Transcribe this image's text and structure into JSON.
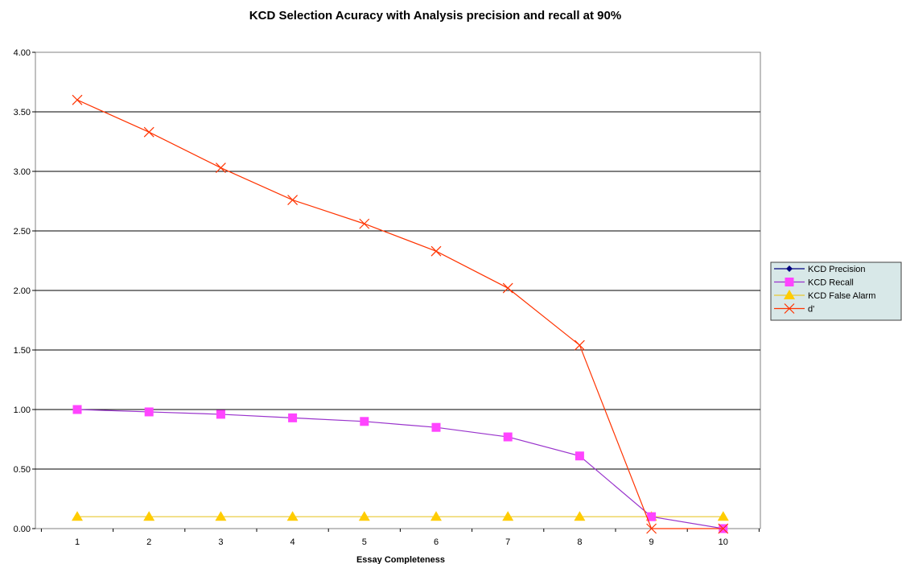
{
  "chart_data": {
    "type": "line",
    "title": "KCD Selection Acuracy with Analysis precision and recall at 90%",
    "xlabel": "Essay Completeness",
    "ylabel": "",
    "categories": [
      "1",
      "2",
      "3",
      "4",
      "5",
      "6",
      "7",
      "8",
      "9",
      "10"
    ],
    "ylim": [
      0,
      4
    ],
    "y_ticks": [
      "0.00",
      "0.50",
      "1.00",
      "1.50",
      "2.00",
      "2.50",
      "3.00",
      "3.50",
      "4.00"
    ],
    "grid": "horizontal",
    "legend_position": "right",
    "series": [
      {
        "name": "KCD Precision",
        "marker": "diamond",
        "color": "#000080",
        "values": [
          null,
          null,
          null,
          null,
          null,
          null,
          null,
          null,
          null,
          null
        ]
      },
      {
        "name": "KCD Recall",
        "marker": "square",
        "color": "#ff44ff",
        "line_color": "#9933cc",
        "values": [
          1.0,
          0.98,
          0.96,
          0.93,
          0.9,
          0.85,
          0.77,
          0.61,
          0.1,
          0.0
        ]
      },
      {
        "name": "KCD False Alarm",
        "marker": "triangle",
        "color": "#ffcc00",
        "line_color": "#e8c830",
        "values": [
          0.1,
          0.1,
          0.1,
          0.1,
          0.1,
          0.1,
          0.1,
          0.1,
          0.1,
          0.1
        ]
      },
      {
        "name": "d'",
        "marker": "x",
        "color": "#ff3300",
        "values": [
          3.6,
          3.33,
          3.03,
          2.76,
          2.56,
          2.33,
          2.02,
          1.54,
          0.0,
          0.0
        ]
      }
    ],
    "colors": {
      "plot_background": "#ffffff",
      "plot_border": "#808080",
      "gridline": "#000000",
      "legend_background": "#d8e8e8"
    }
  }
}
